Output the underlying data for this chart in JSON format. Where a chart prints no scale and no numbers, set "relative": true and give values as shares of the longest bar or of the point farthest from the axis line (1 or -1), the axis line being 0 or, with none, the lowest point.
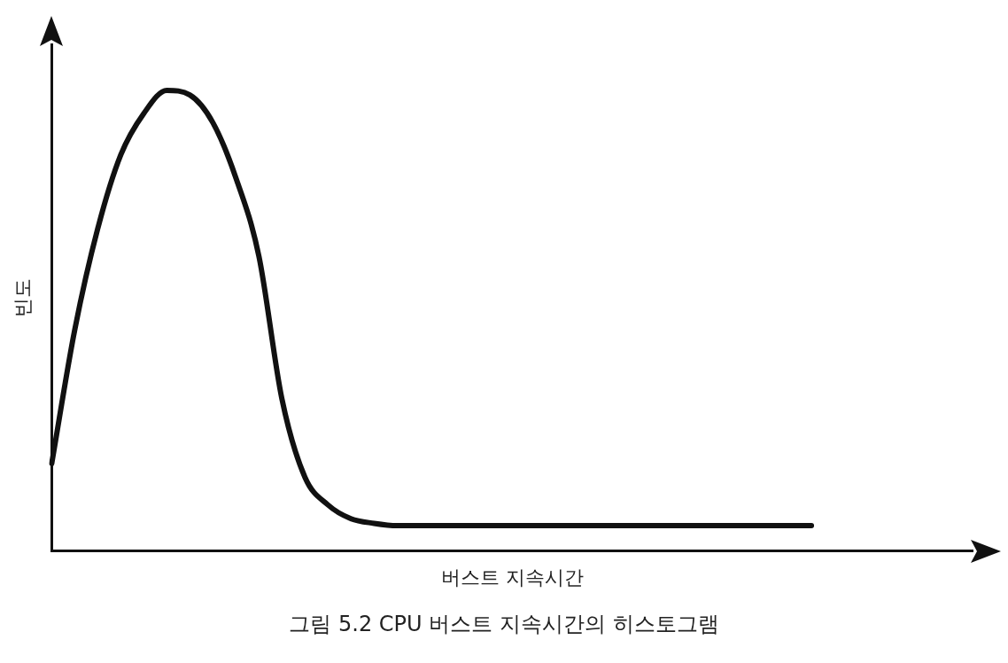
{
  "chart_data": {
    "type": "line",
    "title": "그림 5.2    CPU 버스트 지속시간의 히스토그램",
    "xlabel": "버스트 지속시간",
    "ylabel": "빈도",
    "relative": true,
    "legend": false,
    "grid": false,
    "marker": "none",
    "line_style": "solid",
    "categories": [
      null,
      null,
      null,
      null,
      null,
      null,
      null,
      null,
      null,
      null,
      null,
      null,
      null,
      null,
      null,
      null,
      null,
      null,
      null,
      null,
      null,
      null,
      null,
      null,
      null,
      null,
      null,
      null,
      null,
      null,
      null,
      null,
      null,
      null,
      null,
      null,
      null,
      null,
      null,
      null,
      null
    ],
    "series": [
      {
        "color": "#111111",
        "values": [
          0.19,
          0.48,
          0.7,
          0.86,
          0.95,
          1.0,
          0.99,
          0.93,
          0.81,
          0.64,
          0.33,
          0.16,
          0.1,
          0.07,
          0.06,
          0.055,
          0.055,
          0.055,
          0.055,
          0.055,
          0.055,
          0.055,
          0.055,
          0.055,
          0.055,
          0.055,
          0.055,
          0.055,
          0.055,
          0.055,
          0.055,
          0.055,
          0.055,
          0.055,
          null,
          null,
          null,
          null,
          null,
          null,
          null
        ]
      }
    ]
  }
}
